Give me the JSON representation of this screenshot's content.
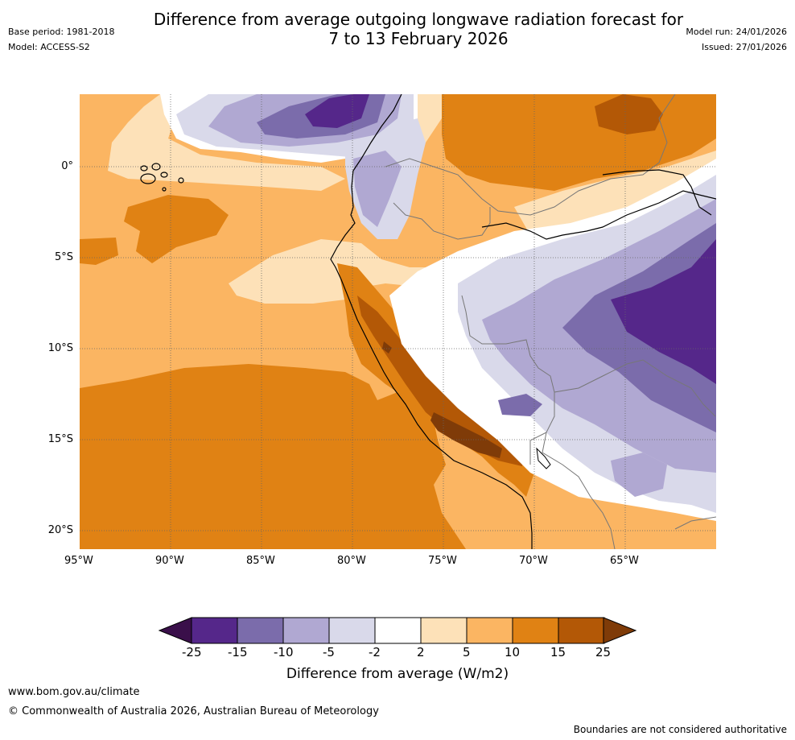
{
  "header": {
    "title_line1": "Difference from average outgoing longwave radiation forecast for",
    "title_line2": "7 to 13 February 2026",
    "base_period": "Base period: 1981-2018",
    "model": "Model: ACCESS-S2",
    "model_run": "Model run: 24/01/2026",
    "issued": "Issued: 27/01/2026"
  },
  "map": {
    "lat_labels": [
      "0°",
      "5°S",
      "10°S",
      "15°S",
      "20°S"
    ],
    "lon_labels": [
      "95°W",
      "90°W",
      "85°W",
      "80°W",
      "75°W",
      "70°W",
      "65°W"
    ],
    "colors": {
      "n25": "#3a0f4a",
      "n15": "#55278a",
      "n10": "#7b6cab",
      "n5": "#b0a8d2",
      "n2": "#d9d9ea",
      "zero": "#ffffff",
      "p2": "#fde1b8",
      "p5": "#fbb562",
      "p10": "#e08214",
      "p15": "#b35806",
      "p25": "#7f3b08"
    }
  },
  "colorbar": {
    "ticks": [
      "-25",
      "-15",
      "-10",
      "-5",
      "-2",
      "2",
      "5",
      "10",
      "15",
      "25"
    ],
    "colors": [
      "#55278a",
      "#7b6cab",
      "#b0a8d2",
      "#d9d9ea",
      "#ffffff",
      "#fde1b8",
      "#fbb562",
      "#e08214",
      "#b35806"
    ],
    "low_extend_color": "#3a0f4a",
    "high_extend_color": "#7f3b08",
    "label": "Difference from average (W/m2)"
  },
  "footer": {
    "website": "www.bom.gov.au/climate",
    "copyright": "© Commonwealth of Australia 2026, Australian Bureau of Meteorology",
    "disclaimer": "Boundaries are not considered authoritative"
  }
}
